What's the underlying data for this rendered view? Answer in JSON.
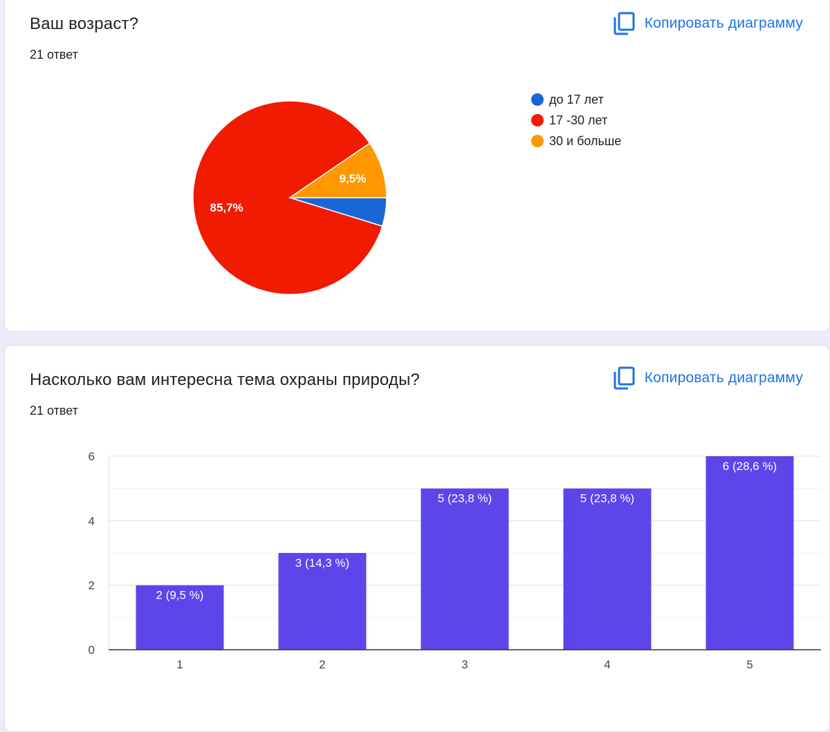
{
  "cards": [
    {
      "title": "Ваш возраст?",
      "responses": "21 ответ",
      "copy_label": "Копировать диаграмму"
    },
    {
      "title": "Насколько вам интересна тема охраны природы?",
      "responses": "21 ответ",
      "copy_label": "Копировать диаграмму"
    }
  ],
  "icons": {
    "copy": "copy-chart-icon"
  },
  "chart_data": [
    {
      "type": "pie",
      "slices": [
        {
          "label": "до 17 лет",
          "value": 1,
          "percent_label": "",
          "color": "#1a66d6"
        },
        {
          "label": "17 -30 лет",
          "value": 18,
          "percent_label": "85,7%",
          "color": "#f01b00"
        },
        {
          "label": "30 и больше",
          "value": 2,
          "percent_label": "9,5%",
          "color": "#ff9800"
        }
      ],
      "legend_position": "right"
    },
    {
      "type": "bar",
      "categories": [
        "1",
        "2",
        "3",
        "4",
        "5"
      ],
      "values": [
        2,
        3,
        5,
        5,
        6
      ],
      "data_labels": [
        "2 (9,5 %)",
        "3 (14,3 %)",
        "5 (23,8 %)",
        "5 (23,8 %)",
        "6 (28,6 %)"
      ],
      "y_ticks": [
        "0",
        "2",
        "4",
        "6"
      ],
      "ylim": [
        0,
        6
      ],
      "grid": true,
      "bar_color": "#5c46ea"
    }
  ]
}
